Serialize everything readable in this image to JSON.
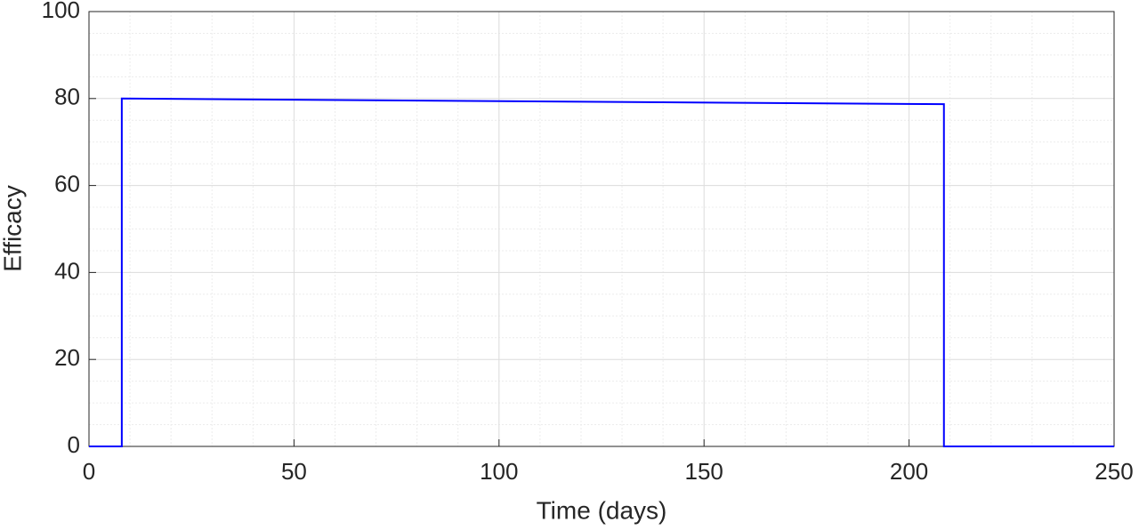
{
  "chart_data": {
    "type": "line",
    "x_label": "Time (days)",
    "y_label": "Efficacy",
    "x": [
      0,
      8,
      8,
      208.5,
      208.5,
      250
    ],
    "series": [
      {
        "name": "Efficacy",
        "color": "#0000ff",
        "values": [
          0,
          0,
          80,
          78.7,
          0,
          0
        ]
      }
    ],
    "xlim": [
      0,
      250
    ],
    "xticks": [
      0,
      50,
      100,
      150,
      200,
      250
    ],
    "ylim": [
      0,
      100
    ],
    "yticks": [
      0,
      20,
      40,
      60,
      80,
      100
    ],
    "xminorticks": [
      10,
      20,
      30,
      40,
      60,
      70,
      80,
      90,
      110,
      120,
      130,
      140,
      160,
      170,
      180,
      190,
      210,
      220,
      230,
      240
    ],
    "yminorticks": [
      5,
      10,
      15,
      25,
      30,
      35,
      45,
      50,
      55,
      65,
      70,
      75,
      85,
      90,
      95
    ],
    "grid": true,
    "minor_grid": true
  }
}
